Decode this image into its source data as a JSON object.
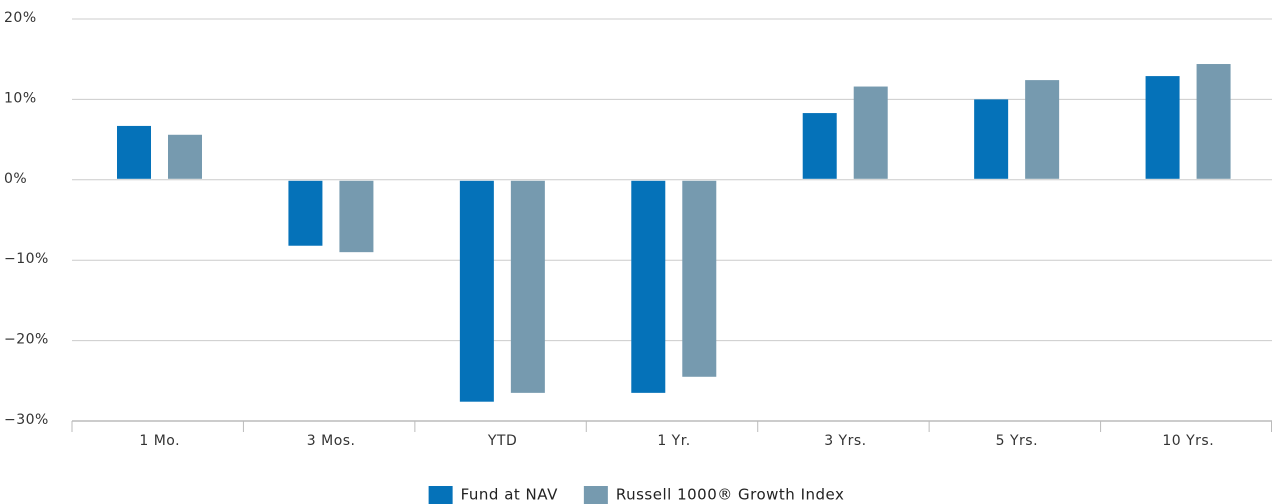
{
  "chart_data": {
    "type": "bar",
    "categories": [
      "1 Mo.",
      "3 Mos.",
      "YTD",
      "1 Yr.",
      "3 Yrs.",
      "5 Yrs.",
      "10 Yrs."
    ],
    "series": [
      {
        "name": "Fund at NAV",
        "color": "#0572b9",
        "values": [
          6.7,
          -8.2,
          -27.6,
          -26.5,
          8.3,
          10.0,
          12.9
        ]
      },
      {
        "name": "Russell 1000® Growth Index",
        "color": "#769aaf",
        "values": [
          5.6,
          -9.0,
          -26.5,
          -24.5,
          11.6,
          12.4,
          14.4
        ]
      }
    ],
    "ylim": [
      -30,
      20
    ],
    "yticks": [
      {
        "value": -30,
        "label": "−30%"
      },
      {
        "value": -20,
        "label": "−20%"
      },
      {
        "value": -10,
        "label": "−10%"
      },
      {
        "value": 0,
        "label": "0%"
      },
      {
        "value": 10,
        "label": "10%"
      },
      {
        "value": 20,
        "label": "20%"
      }
    ],
    "grid": true,
    "legend": "bottom"
  }
}
